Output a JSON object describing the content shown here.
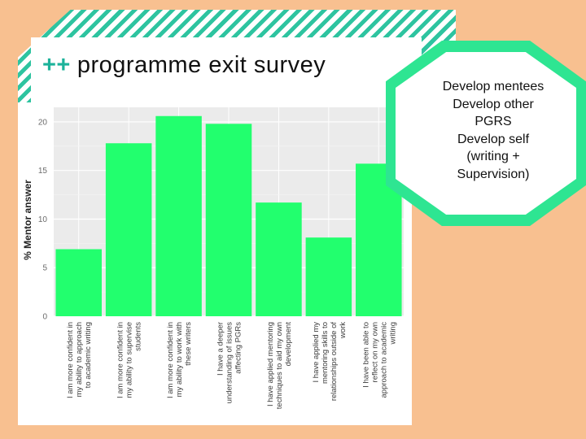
{
  "slide": {
    "title_prefix": "++",
    "title": "programme exit survey"
  },
  "callout": {
    "lines": [
      "Develop mentees",
      "Develop other",
      "PGRS",
      "Develop self",
      "(writing +",
      "Supervision)"
    ]
  },
  "colors": {
    "background": "#f8c090",
    "bar": "#22ff6e",
    "accent_teal": "#2ec4a0",
    "octagon": "#2ee592",
    "plot_bg": "#ebebeb"
  },
  "chart_data": {
    "type": "bar",
    "title": "",
    "xlabel": "",
    "ylabel": "% Mentor answer",
    "ylim": [
      0,
      21.5
    ],
    "yticks": [
      0,
      5,
      10,
      15,
      20
    ],
    "grid": true,
    "categories": [
      [
        "I am more confident in",
        "my ability to approach",
        "to academic writing"
      ],
      [
        "I am more confident in",
        "my ability to supervise",
        "students"
      ],
      [
        "I am more confident in",
        "my ability to work with",
        "these writers"
      ],
      [
        "I have a deeper",
        "understanding of issues",
        "affecting PGRs"
      ],
      [
        "I have applied mentoring",
        "techniques to aid my own",
        "development"
      ],
      [
        "I have applied my",
        "mentoring skills to",
        "relationships outside of",
        "work"
      ],
      [
        "I have been able to",
        "reflect on my own",
        "approach to academic",
        "writing"
      ]
    ],
    "values": [
      6.9,
      17.8,
      20.6,
      19.8,
      11.7,
      8.1,
      15.7
    ]
  }
}
